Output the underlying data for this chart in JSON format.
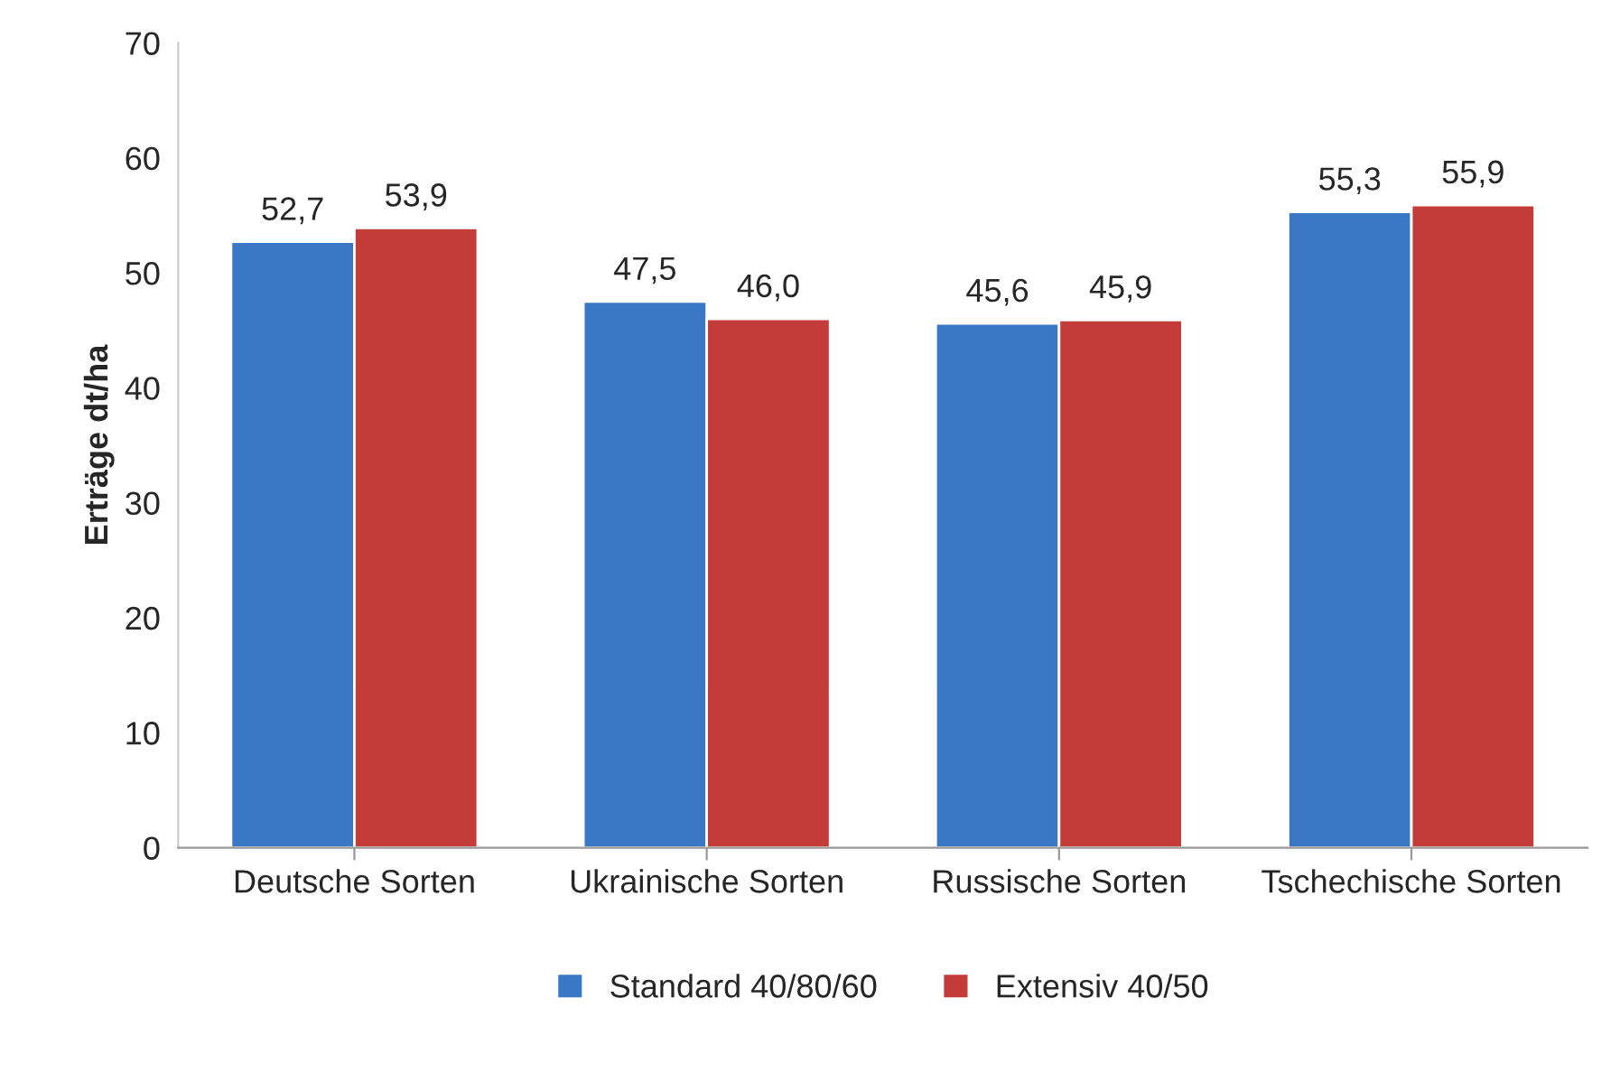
{
  "chart_data": {
    "type": "bar",
    "ylabel": "Erträge dt/ha",
    "categories": [
      "Deutsche Sorten",
      "Ukrainische Sorten",
      "Russische Sorten",
      "Tschechische Sorten"
    ],
    "series": [
      {
        "name": "Standard 40/80/60",
        "color": "#3a78c6",
        "values": [
          52.7,
          47.5,
          45.6,
          55.3
        ],
        "value_labels": [
          "52,7",
          "47,5",
          "45,6",
          "55,3"
        ]
      },
      {
        "name": "Extensiv 40/50",
        "color": "#c43c3a",
        "values": [
          53.9,
          46.0,
          45.9,
          55.9
        ],
        "value_labels": [
          "53,9",
          "46,0",
          "45,9",
          "55,9"
        ]
      }
    ],
    "ylim": [
      0,
      70
    ],
    "yticks": [
      0,
      10,
      20,
      30,
      40,
      50,
      60,
      70
    ],
    "grid": false,
    "legend": "bottom"
  }
}
